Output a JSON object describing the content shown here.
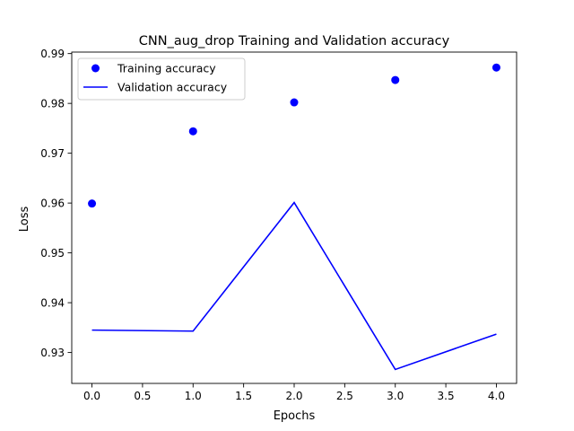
{
  "chart_data": {
    "type": "line",
    "title": "CNN_aug_drop Training and Validation accuracy",
    "xlabel": "Epochs",
    "ylabel": "Loss",
    "xlim": [
      -0.2,
      4.2
    ],
    "ylim": [
      0.9238,
      0.9903
    ],
    "x_ticks": [
      0.0,
      0.5,
      1.0,
      1.5,
      2.0,
      2.5,
      3.0,
      3.5,
      4.0
    ],
    "x_tick_labels": [
      "0.0",
      "0.5",
      "1.0",
      "1.5",
      "2.0",
      "2.5",
      "3.0",
      "3.5",
      "4.0"
    ],
    "y_ticks": [
      0.93,
      0.94,
      0.95,
      0.96,
      0.97,
      0.98,
      0.99
    ],
    "y_tick_labels": [
      "0.93",
      "0.94",
      "0.95",
      "0.96",
      "0.97",
      "0.98",
      "0.99"
    ],
    "grid": false,
    "legend_position": "upper-left",
    "x": [
      0,
      1,
      2,
      3,
      4
    ],
    "series": [
      {
        "name": "Training accuracy",
        "style": "markers",
        "color": "#0000ff",
        "values": [
          0.9599,
          0.9744,
          0.9802,
          0.9847,
          0.9872
        ]
      },
      {
        "name": "Validation accuracy",
        "style": "line",
        "color": "#0000ff",
        "values": [
          0.9345,
          0.9343,
          0.9601,
          0.9266,
          0.9337
        ]
      }
    ]
  }
}
